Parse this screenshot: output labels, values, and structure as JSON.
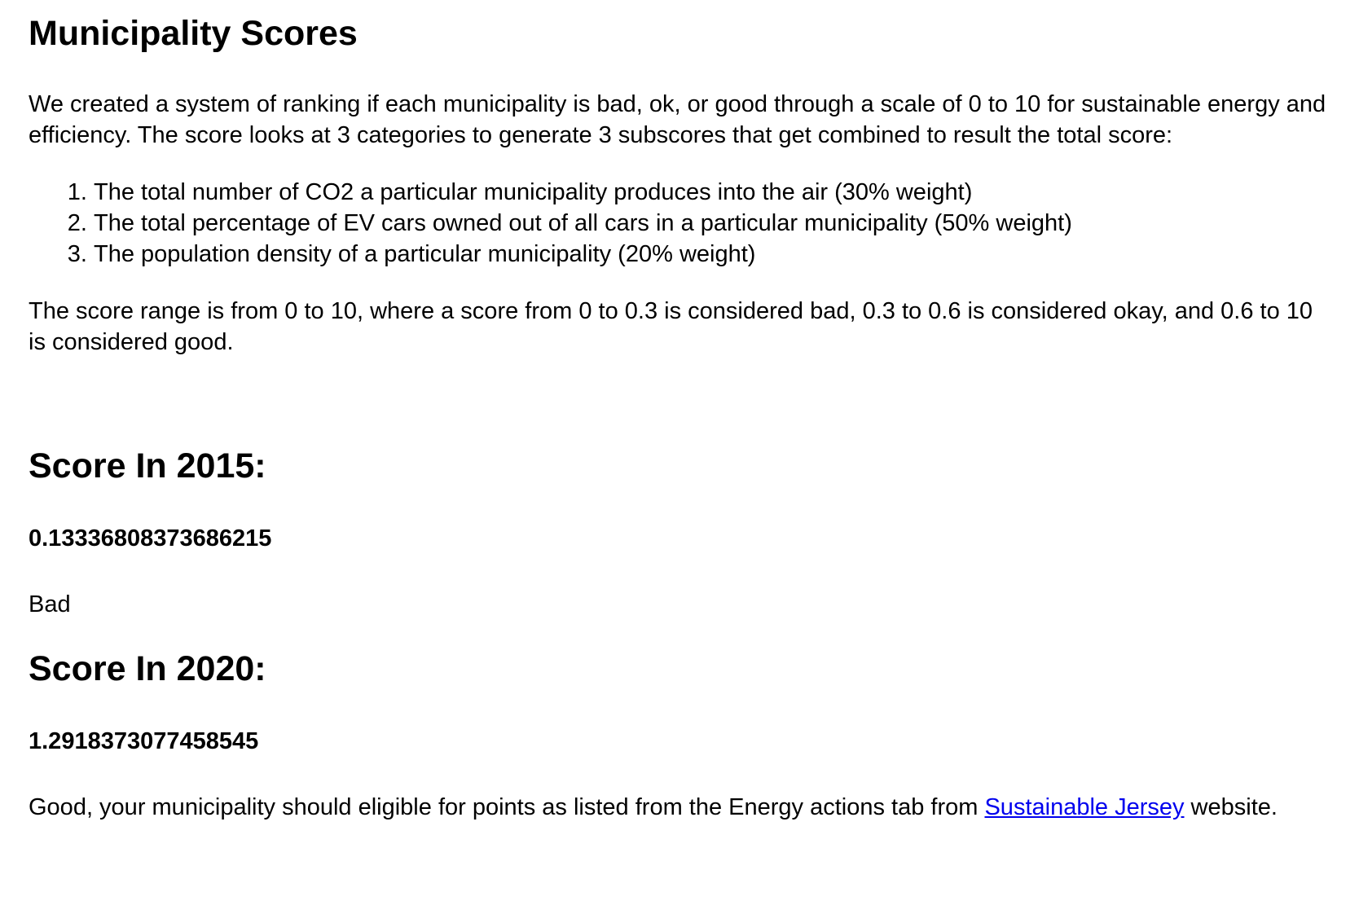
{
  "page": {
    "title": "Municipality Scores",
    "intro": "We created a system of ranking if each municipality is bad, ok, or good through a scale of 0 to 10 for sustainable energy and efficiency. The score looks at 3 categories to generate 3 subscores that get combined to result the total score:",
    "criteria": [
      "The total number of CO2 a particular municipality produces into the air (30% weight)",
      "The total percentage of EV cars owned out of all cars in a particular municipality (50% weight)",
      "The population density of a particular municipality (20% weight)"
    ],
    "range_text": "The score range is from 0 to 10, where a score from 0 to 0.3 is considered bad, 0.3 to 0.6 is considered okay, and 0.6 to 10 is considered good."
  },
  "scores": [
    {
      "heading": "Score In 2015:",
      "value": "0.13336808373686215",
      "verdict": "Bad"
    },
    {
      "heading": "Score In 2020:",
      "value": "1.2918373077458545",
      "verdict_prefix": "Good, your municipality should eligible for points as listed from the Energy actions tab from ",
      "link_text": "Sustainable Jersey",
      "verdict_suffix": " website."
    }
  ],
  "colors": {
    "text": "#000000",
    "link": "#0000ee",
    "background": "#ffffff"
  }
}
